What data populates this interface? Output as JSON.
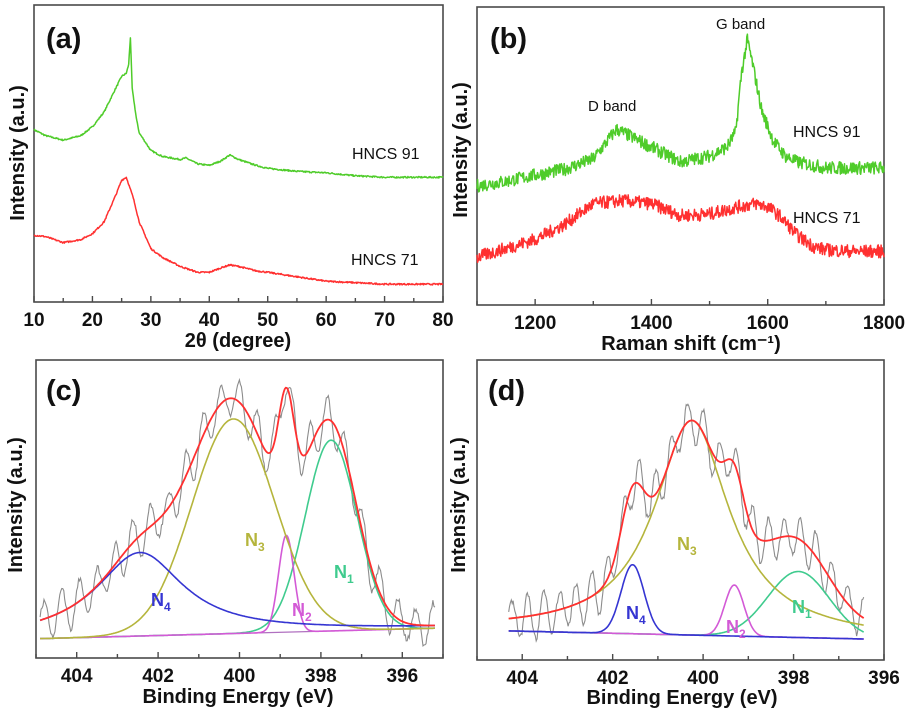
{
  "chart_data": [
    {
      "panel": "(a)",
      "type": "line",
      "xlabel": "2θ (degree)",
      "ylabel": "Intensity (a.u.)",
      "xlim": [
        10,
        80
      ],
      "ylim": [
        0,
        100
      ],
      "xticks": [
        10,
        20,
        30,
        40,
        50,
        60,
        70,
        80
      ],
      "grid": false,
      "series": [
        {
          "name": "HNCS 91",
          "color": "#4fcc2a",
          "x": [
            10,
            12,
            15,
            18,
            20,
            22,
            24,
            25,
            25.8,
            26.2,
            26.5,
            26.8,
            27.5,
            28,
            30,
            32,
            35,
            36,
            38,
            40,
            42,
            43.5,
            45,
            48,
            50,
            55,
            60,
            65,
            70,
            75,
            80
          ],
          "y": [
            58,
            56,
            54.5,
            56,
            59,
            64,
            72,
            76,
            77,
            80,
            89,
            72,
            62,
            57,
            51,
            49,
            48,
            48.5,
            46.5,
            46,
            47.5,
            49.5,
            48,
            46,
            45,
            44,
            43.5,
            42.5,
            42,
            42,
            42
          ]
        },
        {
          "name": "HNCS 71",
          "color": "#ff3030",
          "x": [
            10,
            12,
            15,
            18,
            20,
            22,
            24,
            25,
            25.8,
            27,
            28,
            30,
            32,
            35,
            38,
            40,
            42,
            43.5,
            45,
            48,
            50,
            55,
            60,
            65,
            70,
            80
          ],
          "y": [
            22.5,
            22,
            20,
            21,
            23,
            27,
            36,
            41,
            42,
            35,
            27,
            18,
            15,
            12,
            10,
            10,
            11.5,
            12.5,
            12,
            10.5,
            10,
            8.5,
            7,
            6.5,
            6,
            6
          ]
        }
      ]
    },
    {
      "panel": "(b)",
      "type": "line",
      "xlabel": "Raman shift (cm⁻¹)",
      "ylabel": "Intensity (a.u.)",
      "xlim": [
        1100,
        1800
      ],
      "ylim": [
        0,
        100
      ],
      "xticks": [
        1200,
        1400,
        1600,
        1800
      ],
      "grid": false,
      "annotations": [
        {
          "text": "D band",
          "x": 1340
        },
        {
          "text": "G band",
          "x": 1565
        }
      ],
      "series": [
        {
          "name": "HNCS 91",
          "color": "#4fcc2a",
          "x": [
            1100,
            1150,
            1200,
            1250,
            1300,
            1320,
            1340,
            1360,
            1400,
            1450,
            1500,
            1530,
            1545,
            1555,
            1565,
            1575,
            1590,
            1610,
            1630,
            1650,
            1700,
            1750,
            1800
          ],
          "y": [
            40,
            41.5,
            43.6,
            45.5,
            49,
            54,
            59,
            57,
            53,
            48,
            50,
            53,
            58,
            78,
            89,
            80,
            65,
            55,
            50,
            48,
            46,
            46,
            46
          ]
        },
        {
          "name": "HNCS 71",
          "color": "#ff3030",
          "x": [
            1100,
            1150,
            1200,
            1250,
            1300,
            1350,
            1400,
            1450,
            1500,
            1550,
            1580,
            1600,
            1620,
            1650,
            1680,
            1700,
            1750,
            1800
          ],
          "y": [
            16,
            19,
            22,
            27,
            34,
            35,
            34,
            30,
            30.5,
            33,
            34,
            33,
            30,
            23.5,
            19.5,
            18.5,
            18,
            18
          ]
        }
      ]
    },
    {
      "panel": "(c)",
      "type": "line",
      "xlabel": "Binding Energy (eV)",
      "ylabel": "Intensity (a.u.)",
      "xlim": [
        405,
        395
      ],
      "ylim": [
        0,
        100
      ],
      "xticks": [
        404,
        402,
        400,
        398,
        396
      ],
      "grid": false,
      "xrange_curves": [
        404.9,
        395.2
      ],
      "baseline": [
        6.5,
        10
      ],
      "raw_color": "#8c8c8c",
      "envelope_color": "#ff3030",
      "components": [
        {
          "label": "N",
          "sub": "1",
          "center": 397.75,
          "height": 64,
          "fwhm": 1.5,
          "shape": "gaussian",
          "color": "#3fcb8e"
        },
        {
          "label": "N",
          "sub": "2",
          "center": 398.85,
          "height": 32.5,
          "fwhm": 0.45,
          "shape": "gaussian",
          "color": "#d35ad6"
        },
        {
          "label": "N",
          "sub": "3",
          "center": 400.15,
          "height": 72,
          "fwhm": 2.4,
          "shape": "gaussian",
          "color": "#b5b53c"
        },
        {
          "label": "N",
          "sub": "4",
          "center": 402.45,
          "height": 28,
          "fwhm": 2.6,
          "shape": "lorentzian",
          "color": "#3535d2"
        }
      ]
    },
    {
      "panel": "(d)",
      "type": "line",
      "xlabel": "Binding Energy (eV)",
      "ylabel": "Intensity (a.u.)",
      "xlim": [
        405,
        396
      ],
      "ylim": [
        0,
        100
      ],
      "xticks": [
        404,
        402,
        400,
        398,
        396
      ],
      "grid": false,
      "xrange_curves": [
        404.3,
        396.45
      ],
      "baseline": [
        9.7,
        7
      ],
      "raw_color": "#8c8c8c",
      "envelope_color": "#ff3030",
      "components": [
        {
          "label": "N",
          "sub": "1",
          "center": 397.89,
          "height": 22,
          "fwhm": 1.6,
          "shape": "gaussian",
          "color": "#3fcb8e"
        },
        {
          "label": "N",
          "sub": "2",
          "center": 399.31,
          "height": 17,
          "fwhm": 0.5,
          "shape": "gaussian",
          "color": "#d35ad6"
        },
        {
          "label": "N",
          "sub": "3",
          "center": 400.25,
          "height": 71.5,
          "fwhm": 2.0,
          "shape": "lorentzian",
          "color": "#b5b53c"
        },
        {
          "label": "N",
          "sub": "4",
          "center": 401.56,
          "height": 23,
          "fwhm": 0.6,
          "shape": "gaussian",
          "color": "#3535d2"
        }
      ]
    }
  ]
}
